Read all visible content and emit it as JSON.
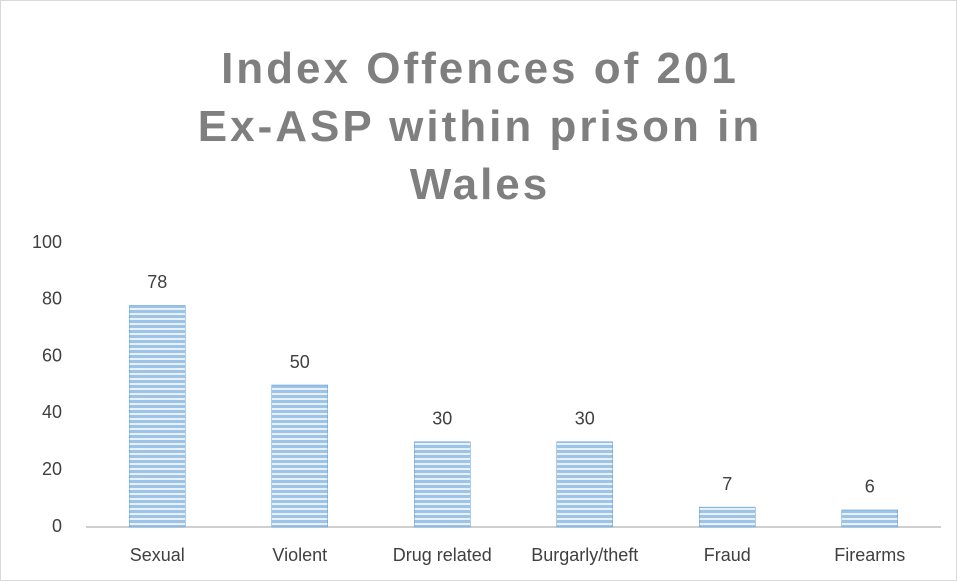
{
  "chart_data": {
    "type": "bar",
    "title": "Index Offences of 201 Ex-ASP within prison in Wales",
    "categories": [
      "Sexual",
      "Violent",
      "Drug related",
      "Burgarly/theft",
      "Fraud",
      "Firearms"
    ],
    "values": [
      78,
      50,
      30,
      30,
      7,
      6
    ],
    "color": "#5b9bd5",
    "ylim": [
      0,
      100
    ],
    "yticks": [
      0,
      20,
      40,
      60,
      80,
      100
    ],
    "grid": false
  }
}
